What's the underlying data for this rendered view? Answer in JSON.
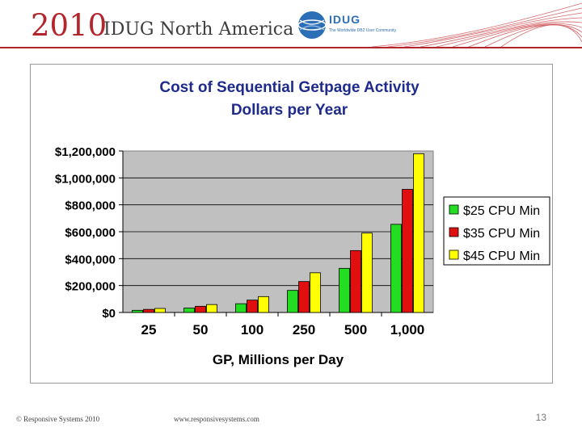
{
  "header": {
    "year": "2010",
    "conference": "IDUG North America",
    "logo_text": "IDUG",
    "logo_tagline": "The Worldwide DB2 User Community",
    "accent_color": "#b3262b"
  },
  "chart_data": {
    "type": "bar",
    "title": "Cost of Sequential Getpage Activity",
    "subtitle": "Dollars per Year",
    "xlabel": "GP, Millions per Day",
    "ylabel": "",
    "categories": [
      "25",
      "50",
      "100",
      "250",
      "500",
      "1,000"
    ],
    "series": [
      {
        "name": "$25 CPU Min",
        "color": "#22dd22",
        "values": [
          16000,
          33000,
          65000,
          164000,
          328000,
          655000
        ]
      },
      {
        "name": "$35 CPU Min",
        "color": "#e01010",
        "values": [
          23000,
          46000,
          92000,
          230000,
          460000,
          915000
        ]
      },
      {
        "name": "$45 CPU Min",
        "color": "#ffff00",
        "values": [
          30000,
          59000,
          118000,
          295000,
          590000,
          1180000
        ]
      }
    ],
    "yticks": [
      "$0",
      "$200,000",
      "$400,000",
      "$600,000",
      "$800,000",
      "$1,000,000",
      "$1,200,000"
    ],
    "ylim": [
      0,
      1200000
    ],
    "grid": true,
    "legend": "right",
    "plot_background": "#c0c0c0"
  },
  "footer": {
    "copyright": "© Responsive Systems 2010",
    "url": "www.responsivesystems.com",
    "page": "13"
  }
}
